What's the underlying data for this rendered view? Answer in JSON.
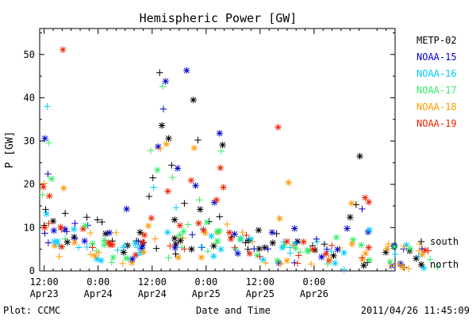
{
  "chart_data": {
    "type": "scatter",
    "title": "Hemispheric Power [GW]",
    "xlabel": "Date and Time",
    "ylabel": "P [GW]",
    "ylim": [
      0,
      56
    ],
    "xlim": [
      "2011-04-23 11:00",
      "2011-04-26 18:00"
    ],
    "y_ticks": [
      0,
      10,
      20,
      30,
      40,
      50
    ],
    "x_ticks": [
      {
        "time": "2011-04-23 12:00",
        "label1": "12:00",
        "label2": "Apr23"
      },
      {
        "time": "2011-04-24 00:00",
        "label1": "0:00",
        "label2": "Apr24"
      },
      {
        "time": "2011-04-24 12:00",
        "label1": "12:00",
        "label2": "Apr24"
      },
      {
        "time": "2011-04-25 00:00",
        "label1": "0:00",
        "label2": "Apr25"
      },
      {
        "time": "2011-04-25 12:00",
        "label1": "12:00",
        "label2": "Apr25"
      },
      {
        "time": "2011-04-26 00:00",
        "label1": "0:00",
        "label2": "Apr26"
      }
    ],
    "legend_position": "right",
    "marker_legend": [
      {
        "symbol": "+",
        "label": "south"
      },
      {
        "symbol": "*",
        "label": "north"
      }
    ],
    "series": [
      {
        "name": "METP-02",
        "color": "#000000",
        "points": [
          {
            "t": "2011-04-23 12:20",
            "y": 14.2,
            "m": "+"
          },
          {
            "t": "2011-04-23 14:00",
            "y": 11.5,
            "m": "*"
          },
          {
            "t": "2011-04-23 16:40",
            "y": 13.3,
            "m": "+"
          },
          {
            "t": "2011-04-23 18:40",
            "y": 7.8,
            "m": "*"
          },
          {
            "t": "2011-04-23 21:30",
            "y": 12.4,
            "m": "+"
          },
          {
            "t": "2011-04-23 23:50",
            "y": 11.8,
            "m": "+"
          },
          {
            "t": "2011-04-24 00:50",
            "y": 11.3,
            "m": "+"
          },
          {
            "t": "2011-04-24 01:40",
            "y": 8.6,
            "m": "*"
          },
          {
            "t": "2011-04-24 03:10",
            "y": 6.9,
            "m": "+"
          },
          {
            "t": "2011-04-24 05:40",
            "y": 4.3,
            "m": "*"
          },
          {
            "t": "2011-04-24 09:20",
            "y": 8.9,
            "m": "*"
          },
          {
            "t": "2011-04-24 11:20",
            "y": 17.2,
            "m": "+"
          },
          {
            "t": "2011-04-24 12:10",
            "y": 21.5,
            "m": "+"
          },
          {
            "t": "2011-04-24 13:40",
            "y": 45.8,
            "m": "+"
          },
          {
            "t": "2011-04-24 14:10",
            "y": 33.6,
            "m": "*"
          },
          {
            "t": "2011-04-24 15:40",
            "y": 30.6,
            "m": "*"
          },
          {
            "t": "2011-04-24 16:20",
            "y": 24.4,
            "m": "+"
          },
          {
            "t": "2011-04-24 17:00",
            "y": 11.8,
            "m": "*"
          },
          {
            "t": "2011-04-24 19:10",
            "y": 15.6,
            "m": "+"
          },
          {
            "t": "2011-04-24 21:10",
            "y": 39.5,
            "m": "*"
          },
          {
            "t": "2011-04-24 22:10",
            "y": 30.2,
            "m": "+"
          },
          {
            "t": "2011-04-24 22:40",
            "y": 14.2,
            "m": "*"
          },
          {
            "t": "2011-04-25 00:40",
            "y": 11.4,
            "m": "+"
          },
          {
            "t": "2011-04-25 03:00",
            "y": 12.5,
            "m": "+"
          },
          {
            "t": "2011-04-25 03:40",
            "y": 29.1,
            "m": "*"
          },
          {
            "t": "2011-04-25 05:40",
            "y": 7.8,
            "m": "+"
          },
          {
            "t": "2011-04-25 11:40",
            "y": 9.4,
            "m": "*"
          },
          {
            "t": "2011-04-25 15:40",
            "y": 8.6,
            "m": "+"
          },
          {
            "t": "2011-04-25 20:20",
            "y": 6.8,
            "m": "*"
          },
          {
            "t": "2011-04-25 23:40",
            "y": 5.8,
            "m": "+"
          },
          {
            "t": "2011-04-26 04:20",
            "y": 3.5,
            "m": "*"
          },
          {
            "t": "2011-04-26 08:00",
            "y": 12.4,
            "m": "*"
          },
          {
            "t": "2011-04-26 09:20",
            "y": 15.3,
            "m": "+"
          },
          {
            "t": "2011-04-26 10:10",
            "y": 26.5,
            "m": "*"
          }
        ]
      },
      {
        "name": "NOAA-15",
        "color": "#0000cc",
        "points": [
          {
            "t": "2011-04-23 12:10",
            "y": 30.6,
            "m": "*"
          },
          {
            "t": "2011-04-23 12:50",
            "y": 22.4,
            "m": "+"
          },
          {
            "t": "2011-04-23 14:10",
            "y": 9.3,
            "m": "*"
          },
          {
            "t": "2011-04-23 17:00",
            "y": 9.1,
            "m": "+"
          },
          {
            "t": "2011-04-23 21:00",
            "y": 6.9,
            "m": "*"
          },
          {
            "t": "2011-04-24 02:30",
            "y": 8.8,
            "m": "*"
          },
          {
            "t": "2011-04-24 06:20",
            "y": 14.3,
            "m": "*"
          },
          {
            "t": "2011-04-24 09:40",
            "y": 5.2,
            "m": "*"
          },
          {
            "t": "2011-04-24 13:20",
            "y": 28.7,
            "m": "*"
          },
          {
            "t": "2011-04-24 14:30",
            "y": 37.4,
            "m": "+"
          },
          {
            "t": "2011-04-24 15:00",
            "y": 43.8,
            "m": "*"
          },
          {
            "t": "2011-04-24 17:40",
            "y": 23.7,
            "m": "*"
          },
          {
            "t": "2011-04-24 19:40",
            "y": 46.3,
            "m": "*"
          },
          {
            "t": "2011-04-24 21:40",
            "y": 19.7,
            "m": "*"
          },
          {
            "t": "2011-04-25 01:50",
            "y": 15.8,
            "m": "*"
          },
          {
            "t": "2011-04-25 03:00",
            "y": 31.8,
            "m": "*"
          },
          {
            "t": "2011-04-25 06:20",
            "y": 8.5,
            "m": "*"
          },
          {
            "t": "2011-04-25 10:40",
            "y": 5.1,
            "m": "+"
          },
          {
            "t": "2011-04-25 14:40",
            "y": 8.9,
            "m": "*"
          },
          {
            "t": "2011-04-25 19:40",
            "y": 9.8,
            "m": "*"
          },
          {
            "t": "2011-04-26 01:40",
            "y": 3.2,
            "m": "*"
          },
          {
            "t": "2011-04-26 07:20",
            "y": 9.8,
            "m": "*"
          },
          {
            "t": "2011-04-26 10:40",
            "y": 14.3,
            "m": "+"
          },
          {
            "t": "2011-04-26 12:00",
            "y": 9.0,
            "m": "*"
          }
        ]
      },
      {
        "name": "NOAA-16",
        "color": "#00ccff",
        "points": [
          {
            "t": "2011-04-23 12:30",
            "y": 13.2,
            "m": "*"
          },
          {
            "t": "2011-04-23 12:40",
            "y": 38.0,
            "m": "+"
          },
          {
            "t": "2011-04-23 15:00",
            "y": 6.8,
            "m": "*"
          },
          {
            "t": "2011-04-23 19:40",
            "y": 5.4,
            "m": "+"
          },
          {
            "t": "2011-04-24 00:40",
            "y": 2.4,
            "m": "*"
          },
          {
            "t": "2011-04-24 04:20",
            "y": 4.8,
            "m": "+"
          },
          {
            "t": "2011-04-24 08:40",
            "y": 3.6,
            "m": "+"
          },
          {
            "t": "2011-04-24 12:20",
            "y": 19.3,
            "m": "+"
          },
          {
            "t": "2011-04-24 17:20",
            "y": 14.6,
            "m": "+"
          },
          {
            "t": "2011-04-24 23:20",
            "y": 9.7,
            "m": "+"
          },
          {
            "t": "2011-04-25 01:40",
            "y": 3.4,
            "m": "*"
          },
          {
            "t": "2011-04-25 06:40",
            "y": 4.9,
            "m": "+"
          },
          {
            "t": "2011-04-25 12:40",
            "y": 2.6,
            "m": "*"
          },
          {
            "t": "2011-04-25 18:40",
            "y": 4.1,
            "m": "+"
          },
          {
            "t": "2011-04-26 00:40",
            "y": 6.7,
            "m": "+"
          },
          {
            "t": "2011-04-26 04:40",
            "y": 1.8,
            "m": "*"
          },
          {
            "t": "2011-04-26 06:40",
            "y": 0.3,
            "m": "+"
          },
          {
            "t": "2011-04-26 12:20",
            "y": 9.5,
            "m": "*"
          }
        ]
      },
      {
        "name": "NOAA-17",
        "color": "#33ee66",
        "points": [
          {
            "t": "2011-04-23 11:40",
            "y": 17.6,
            "m": "+"
          },
          {
            "t": "2011-04-23 13:00",
            "y": 29.6,
            "m": "+"
          },
          {
            "t": "2011-04-23 13:40",
            "y": 21.3,
            "m": "*"
          },
          {
            "t": "2011-04-23 16:40",
            "y": 7.4,
            "m": "+"
          },
          {
            "t": "2011-04-23 23:40",
            "y": 4.6,
            "m": "+"
          },
          {
            "t": "2011-04-24 01:20",
            "y": 6.0,
            "m": "*"
          },
          {
            "t": "2011-04-24 03:20",
            "y": 3.1,
            "m": "*"
          },
          {
            "t": "2011-04-24 06:40",
            "y": 2.8,
            "m": "+"
          },
          {
            "t": "2011-04-24 11:40",
            "y": 27.8,
            "m": "+"
          },
          {
            "t": "2011-04-24 13:10",
            "y": 23.3,
            "m": "*"
          },
          {
            "t": "2011-04-24 14:20",
            "y": 42.6,
            "m": "+"
          },
          {
            "t": "2011-04-24 16:30",
            "y": 21.6,
            "m": "+"
          },
          {
            "t": "2011-04-24 19:00",
            "y": 9.1,
            "m": "*"
          },
          {
            "t": "2011-04-24 20:00",
            "y": 10.7,
            "m": "+"
          },
          {
            "t": "2011-04-24 22:30",
            "y": 16.4,
            "m": "+"
          },
          {
            "t": "2011-04-25 00:10",
            "y": 11.2,
            "m": "*"
          },
          {
            "t": "2011-04-25 03:20",
            "y": 27.7,
            "m": "+"
          },
          {
            "t": "2011-04-25 06:30",
            "y": 5.3,
            "m": "+"
          },
          {
            "t": "2011-04-25 11:20",
            "y": 3.6,
            "m": "*"
          },
          {
            "t": "2011-04-25 17:20",
            "y": 5.8,
            "m": "*"
          },
          {
            "t": "2011-04-25 22:40",
            "y": 4.5,
            "m": "*"
          },
          {
            "t": "2011-04-26 03:00",
            "y": 1.6,
            "m": "+"
          },
          {
            "t": "2011-04-26 08:40",
            "y": 7.2,
            "m": "*"
          }
        ]
      },
      {
        "name": "NOAA-18",
        "color": "#ff9900",
        "points": [
          {
            "t": "2011-04-23 12:00",
            "y": 20.2,
            "m": "+"
          },
          {
            "t": "2011-04-23 14:20",
            "y": 5.8,
            "m": "*"
          },
          {
            "t": "2011-04-23 15:20",
            "y": 3.3,
            "m": "+"
          },
          {
            "t": "2011-04-23 16:20",
            "y": 19.1,
            "m": "*"
          },
          {
            "t": "2011-04-23 22:20",
            "y": 3.8,
            "m": "+"
          },
          {
            "t": "2011-04-24 00:10",
            "y": 4.2,
            "m": "+"
          },
          {
            "t": "2011-04-24 04:00",
            "y": 8.8,
            "m": "+"
          },
          {
            "t": "2011-04-24 07:30",
            "y": 1.9,
            "m": "*"
          },
          {
            "t": "2011-04-24 11:10",
            "y": 10.4,
            "m": "*"
          },
          {
            "t": "2011-04-24 12:40",
            "y": 7.4,
            "m": "+"
          },
          {
            "t": "2011-04-24 13:50",
            "y": 28.2,
            "m": "+"
          },
          {
            "t": "2011-04-24 15:10",
            "y": 29.3,
            "m": "*"
          },
          {
            "t": "2011-04-24 17:50",
            "y": 3.1,
            "m": "*"
          },
          {
            "t": "2011-04-24 18:50",
            "y": 7.6,
            "m": "+"
          },
          {
            "t": "2011-04-24 21:20",
            "y": 28.4,
            "m": "*"
          },
          {
            "t": "2011-04-25 02:40",
            "y": 8.9,
            "m": "*"
          },
          {
            "t": "2011-04-25 04:40",
            "y": 10.8,
            "m": "+"
          },
          {
            "t": "2011-04-25 10:20",
            "y": 6.8,
            "m": "+"
          },
          {
            "t": "2011-04-25 16:20",
            "y": 12.1,
            "m": "*"
          },
          {
            "t": "2011-04-25 18:20",
            "y": 20.4,
            "m": "*"
          },
          {
            "t": "2011-04-25 23:20",
            "y": 1.6,
            "m": "+"
          },
          {
            "t": "2011-04-26 05:40",
            "y": 5.3,
            "m": "+"
          },
          {
            "t": "2011-04-26 08:20",
            "y": 15.6,
            "m": "*"
          }
        ]
      },
      {
        "name": "NOAA-19",
        "color": "#ee2200",
        "points": [
          {
            "t": "2011-04-23 11:50",
            "y": 19.4,
            "m": "*"
          },
          {
            "t": "2011-04-23 13:10",
            "y": 17.3,
            "m": "*"
          },
          {
            "t": "2011-04-23 15:40",
            "y": 10.1,
            "m": "*"
          },
          {
            "t": "2011-04-23 16:10",
            "y": 51.1,
            "m": "*"
          },
          {
            "t": "2011-04-23 20:40",
            "y": 9.7,
            "m": "*"
          },
          {
            "t": "2011-04-24 02:40",
            "y": 6.0,
            "m": "*"
          },
          {
            "t": "2011-04-24 08:20",
            "y": 3.7,
            "m": "*"
          },
          {
            "t": "2011-04-24 11:50",
            "y": 12.2,
            "m": "*"
          },
          {
            "t": "2011-04-24 15:30",
            "y": 18.4,
            "m": "*"
          },
          {
            "t": "2011-04-24 18:10",
            "y": 10.5,
            "m": "*"
          },
          {
            "t": "2011-04-24 20:40",
            "y": 20.9,
            "m": "*"
          },
          {
            "t": "2011-04-24 22:20",
            "y": 11.0,
            "m": "*"
          },
          {
            "t": "2011-04-25 02:20",
            "y": 16.4,
            "m": "*"
          },
          {
            "t": "2011-04-25 03:10",
            "y": 23.8,
            "m": "*"
          },
          {
            "t": "2011-04-25 03:50",
            "y": 19.3,
            "m": "*"
          },
          {
            "t": "2011-04-25 05:30",
            "y": 7.4,
            "m": "*"
          },
          {
            "t": "2011-04-25 09:40",
            "y": 4.0,
            "m": "*"
          },
          {
            "t": "2011-04-25 16:00",
            "y": 33.2,
            "m": "*"
          },
          {
            "t": "2011-04-25 21:40",
            "y": 6.7,
            "m": "*"
          },
          {
            "t": "2011-04-26 03:20",
            "y": 2.4,
            "m": "*"
          },
          {
            "t": "2011-04-26 11:20",
            "y": 16.9,
            "m": "*"
          },
          {
            "t": "2011-04-26 12:10",
            "y": 15.9,
            "m": "*"
          }
        ]
      }
    ],
    "noise_seed": 7
  },
  "footer": {
    "plot_credit": "Plot: CCMC",
    "timestamp": "2011/04/26 11:45:09"
  }
}
